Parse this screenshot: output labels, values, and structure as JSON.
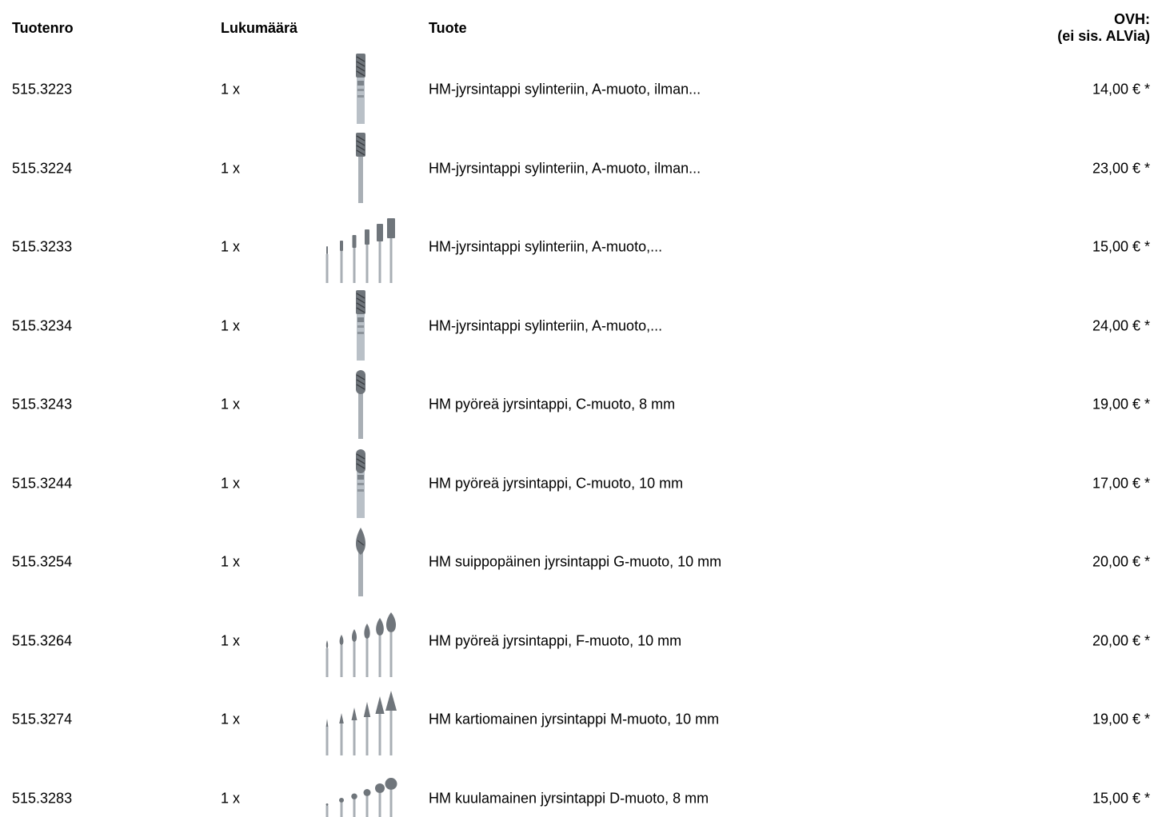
{
  "header": {
    "col_number": "Tuotenro",
    "col_qty": "Lukumäärä",
    "col_product": "Tuote",
    "col_price_line1": "OVH:",
    "col_price_line2": "(ei sis. ALVia)"
  },
  "rows": [
    {
      "number": "515.3223",
      "qty": "1 x",
      "name": "HM-jyrsintappi sylinteriin, A-muoto, ilman...",
      "price": "14,00 € *",
      "image": "cylinder-single-marked"
    },
    {
      "number": "515.3224",
      "qty": "1 x",
      "name": "HM-jyrsintappi sylinteriin, A-muoto, ilman...",
      "price": "23,00 € *",
      "image": "cylinder-single"
    },
    {
      "number": "515.3233",
      "qty": "1 x",
      "name": "HM-jyrsintappi sylinteriin, A-muoto,...",
      "price": "15,00 € *",
      "image": "cylinder-set"
    },
    {
      "number": "515.3234",
      "qty": "1 x",
      "name": "HM-jyrsintappi sylinteriin, A-muoto,...",
      "price": "24,00 € *",
      "image": "cylinder-single-marked"
    },
    {
      "number": "515.3243",
      "qty": "1 x",
      "name": "HM pyöreä jyrsintappi, C-muoto, 8 mm",
      "price": "19,00 € *",
      "image": "round-single"
    },
    {
      "number": "515.3244",
      "qty": "1 x",
      "name": "HM pyöreä jyrsintappi, C-muoto, 10 mm",
      "price": "17,00 € *",
      "image": "round-single-marked"
    },
    {
      "number": "515.3254",
      "qty": "1 x",
      "name": "HM suippopäinen jyrsintappi G-muoto, 10 mm",
      "price": "20,00 € *",
      "image": "pointed-single"
    },
    {
      "number": "515.3264",
      "qty": "1 x",
      "name": "HM pyöreä jyrsintappi, F-muoto, 10 mm",
      "price": "20,00 € *",
      "image": "flame-set"
    },
    {
      "number": "515.3274",
      "qty": "1 x",
      "name": "HM kartiomainen jyrsintappi M-muoto, 10 mm",
      "price": "19,00 € *",
      "image": "cone-set"
    },
    {
      "number": "515.3283",
      "qty": "1 x",
      "name": "HM kuulamainen jyrsintappi D-muoto, 8 mm",
      "price": "15,00 € *",
      "image": "ball-set"
    }
  ]
}
